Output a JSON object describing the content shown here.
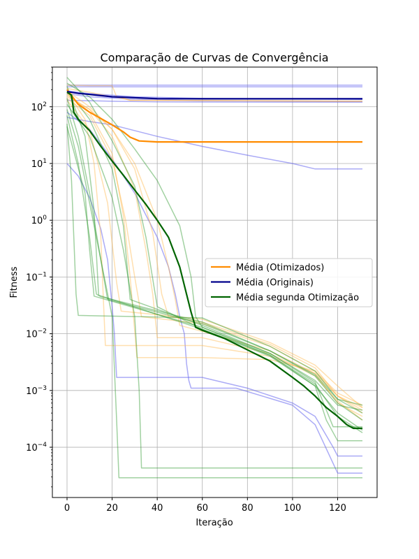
{
  "chart_data": {
    "type": "line",
    "title": "Comparação de Curvas de Convergência",
    "xlabel": "Iteração",
    "ylabel": "Fitness",
    "yscale": "log",
    "xlim": [
      -6.5,
      137.5
    ],
    "ylim": [
      1.3e-05,
      500
    ],
    "xticks": [
      0,
      20,
      40,
      60,
      80,
      100,
      120
    ],
    "yticks": [
      {
        "value": 0.0001,
        "base": "10",
        "exp": "−4"
      },
      {
        "value": 0.001,
        "base": "10",
        "exp": "−3"
      },
      {
        "value": 0.01,
        "base": "10",
        "exp": "−2"
      },
      {
        "value": 0.1,
        "base": "10",
        "exp": "−1"
      },
      {
        "value": 1,
        "base": "10",
        "exp": "0"
      },
      {
        "value": 10,
        "base": "10",
        "exp": "1"
      },
      {
        "value": 100,
        "base": "10",
        "exp": "2"
      }
    ],
    "grid": true,
    "legend_position": "center-right",
    "colors": {
      "otimizados": "#ff8c00",
      "originais": "#00008b",
      "originais_runs": "#6666ee",
      "segunda": "#006400",
      "segunda_runs": "#2e9a2e",
      "otimizados_runs": "#ffb84d"
    },
    "series": [
      {
        "name": "Média (Otimizados)",
        "color": "#ff8c00",
        "width": 2.2,
        "x": [
          0,
          5,
          10,
          15,
          20,
          25,
          28,
          32,
          40,
          60,
          90,
          131
        ],
        "y": [
          200,
          110,
          80,
          62,
          48,
          36,
          29,
          25,
          24,
          24,
          24,
          24
        ]
      },
      {
        "name": "Média (Originais)",
        "color": "#00008b",
        "width": 2.2,
        "x": [
          0,
          5,
          10,
          20,
          40,
          60,
          90,
          131
        ],
        "y": [
          185,
          172,
          165,
          150,
          139,
          138,
          138,
          138
        ]
      },
      {
        "name": "Média segunda Otimização",
        "color": "#006400",
        "width": 2.2,
        "x": [
          0,
          2,
          3,
          5,
          10,
          15,
          20,
          25,
          30,
          35,
          40,
          45,
          50,
          53,
          55,
          57,
          60,
          70,
          80,
          90,
          100,
          105,
          110,
          113,
          115,
          120,
          124,
          127,
          131
        ],
        "y": [
          180,
          160,
          80,
          60,
          38,
          20,
          11,
          6.2,
          3.4,
          1.9,
          1.0,
          0.5,
          0.15,
          0.05,
          0.024,
          0.013,
          0.0115,
          0.0082,
          0.0052,
          0.0033,
          0.0017,
          0.0012,
          0.0008,
          0.0006,
          0.0005,
          0.00035,
          0.00025,
          0.000215,
          0.000215
        ]
      }
    ],
    "background_runs": [
      {
        "group": "originais",
        "x": [
          0,
          131
        ],
        "y": [
          240,
          240
        ]
      },
      {
        "group": "originais",
        "x": [
          0,
          131
        ],
        "y": [
          225,
          225
        ]
      },
      {
        "group": "originais",
        "x": [
          0,
          10,
          30,
          60,
          131
        ],
        "y": [
          190,
          170,
          150,
          140,
          135
        ]
      },
      {
        "group": "originais",
        "x": [
          0,
          10,
          30,
          60,
          131
        ],
        "y": [
          170,
          150,
          135,
          127,
          125
        ]
      },
      {
        "group": "originais",
        "x": [
          0,
          20,
          40,
          60,
          131
        ],
        "y": [
          130,
          125,
          122,
          121,
          120
        ]
      },
      {
        "group": "originais",
        "x": [
          0,
          10,
          20,
          40,
          60,
          80,
          100,
          110,
          131
        ],
        "y": [
          65,
          55,
          48,
          30,
          20,
          14,
          10,
          8,
          8
        ]
      },
      {
        "group": "originais",
        "x": [
          0,
          5,
          10,
          15,
          18,
          20,
          21,
          22,
          60,
          80,
          100,
          110,
          118,
          120,
          131
        ],
        "y": [
          10,
          6,
          2.5,
          0.7,
          0.2,
          0.03,
          0.01,
          0.0017,
          0.0017,
          0.0011,
          0.0006,
          0.00035,
          0.0001,
          7e-05,
          7e-05
        ]
      },
      {
        "group": "originais",
        "x": [
          0,
          10,
          20,
          30,
          40,
          45,
          48,
          50,
          52,
          53,
          54,
          55,
          75,
          100,
          110,
          120,
          131
        ],
        "y": [
          80,
          40,
          12,
          3,
          0.5,
          0.15,
          0.05,
          0.02,
          0.01,
          0.003,
          0.0015,
          0.0011,
          0.0011,
          0.00055,
          0.00025,
          3.5e-05,
          3.5e-05
        ]
      },
      {
        "group": "otimizados",
        "x": [
          0,
          10,
          20,
          22,
          28,
          131
        ],
        "y": [
          240,
          235,
          235,
          150,
          130,
          125
        ]
      },
      {
        "group": "otimizados",
        "x": [
          0,
          10,
          20,
          25,
          28,
          131
        ],
        "y": [
          210,
          180,
          150,
          140,
          130,
          125
        ]
      },
      {
        "group": "otimizados",
        "x": [
          0,
          8,
          12,
          15,
          16,
          17,
          60,
          90,
          110,
          120,
          131
        ],
        "y": [
          180,
          60,
          10,
          0.5,
          0.05,
          0.0062,
          0.0062,
          0.004,
          0.002,
          0.0008,
          0.0005
        ]
      },
      {
        "group": "otimizados",
        "x": [
          0,
          10,
          20,
          25,
          28,
          31,
          60,
          90,
          110,
          120,
          131
        ],
        "y": [
          170,
          80,
          15,
          1.2,
          0.1,
          0.0038,
          0.0038,
          0.0035,
          0.0022,
          0.0008,
          0.0004
        ]
      },
      {
        "group": "otimizados",
        "x": [
          0,
          10,
          20,
          30,
          35,
          38,
          40,
          60,
          90,
          110,
          120,
          131
        ],
        "y": [
          160,
          90,
          30,
          3.5,
          0.3,
          0.05,
          0.0085,
          0.0085,
          0.0045,
          0.0018,
          0.00065,
          0.0003
        ]
      },
      {
        "group": "otimizados",
        "x": [
          0,
          10,
          20,
          30,
          40,
          45,
          48,
          50,
          60,
          90,
          110,
          120,
          131
        ],
        "y": [
          150,
          90,
          40,
          10,
          1.0,
          0.15,
          0.04,
          0.014,
          0.011,
          0.005,
          0.002,
          0.0006,
          0.00035
        ]
      },
      {
        "group": "otimizados",
        "x": [
          0,
          10,
          20,
          26,
          30,
          33,
          60,
          90,
          110,
          120,
          131
        ],
        "y": [
          140,
          70,
          12,
          1.0,
          0.1,
          0.02,
          0.015,
          0.006,
          0.0022,
          0.0009,
          0.00055
        ]
      },
      {
        "group": "otimizados",
        "x": [
          0,
          10,
          20,
          30,
          38,
          42,
          45,
          60,
          90,
          110,
          120,
          131
        ],
        "y": [
          190,
          100,
          40,
          8,
          0.6,
          0.05,
          0.02,
          0.016,
          0.0065,
          0.0025,
          0.0008,
          0.00045
        ]
      },
      {
        "group": "otimizados",
        "x": [
          0,
          10,
          18,
          22,
          24,
          60,
          90,
          110,
          120,
          131
        ],
        "y": [
          130,
          40,
          2,
          0.08,
          0.025,
          0.018,
          0.007,
          0.0028,
          0.0012,
          0.0005
        ]
      },
      {
        "group": "segunda",
        "x": [
          0,
          2,
          3,
          4,
          5,
          60,
          90,
          110,
          120,
          131
        ],
        "y": [
          50,
          5,
          0.5,
          0.05,
          0.021,
          0.019,
          0.006,
          0.0022,
          0.0007,
          0.0004
        ]
      },
      {
        "group": "segunda",
        "x": [
          0,
          5,
          10,
          13,
          15,
          60,
          90,
          110,
          120,
          131
        ],
        "y": [
          70,
          10,
          0.5,
          0.05,
          0.045,
          0.016,
          0.005,
          0.0018,
          0.0006,
          0.0003
        ]
      },
      {
        "group": "segunda",
        "x": [
          0,
          5,
          10,
          15,
          20,
          22,
          23,
          131
        ],
        "y": [
          90,
          20,
          2,
          0.2,
          0.02,
          0.0003,
          2.9e-05,
          2.9e-05
        ]
      },
      {
        "group": "segunda",
        "x": [
          0,
          10,
          20,
          25,
          30,
          32,
          33,
          131
        ],
        "y": [
          110,
          30,
          2.5,
          0.3,
          0.02,
          0.001,
          4.3e-05,
          4.3e-05
        ]
      },
      {
        "group": "segunda",
        "x": [
          0,
          5,
          10,
          15,
          18,
          60,
          90,
          110,
          120,
          131
        ],
        "y": [
          140,
          30,
          3,
          0.2,
          0.04,
          0.015,
          0.005,
          0.0019,
          0.0007,
          0.00055
        ]
      },
      {
        "group": "segunda",
        "x": [
          0,
          10,
          20,
          30,
          40,
          50,
          55,
          57,
          60,
          90,
          110,
          120,
          131
        ],
        "y": [
          260,
          150,
          60,
          18,
          5,
          0.8,
          0.1,
          0.02,
          0.013,
          0.0045,
          0.0015,
          0.00055,
          0.00045
        ]
      },
      {
        "group": "segunda",
        "x": [
          0,
          8,
          12,
          14,
          60,
          90,
          110,
          115,
          120,
          131
        ],
        "y": [
          230,
          30,
          1.5,
          0.048,
          0.012,
          0.004,
          0.0012,
          0.0003,
          0.00013,
          0.00013
        ]
      },
      {
        "group": "segunda",
        "x": [
          0,
          10,
          20,
          25,
          28,
          60,
          90,
          110,
          118,
          131
        ],
        "y": [
          200,
          60,
          8,
          0.8,
          0.04,
          0.014,
          0.0045,
          0.0014,
          0.00023,
          0.00023
        ]
      },
      {
        "group": "segunda",
        "x": [
          0,
          10,
          20,
          30,
          35,
          40,
          60,
          90,
          110,
          120,
          131
        ],
        "y": [
          330,
          120,
          25,
          4,
          0.5,
          0.03,
          0.012,
          0.0042,
          0.0013,
          0.00035,
          0.00018
        ]
      },
      {
        "group": "segunda",
        "x": [
          0,
          8,
          10,
          12,
          60,
          90,
          110,
          120,
          131
        ],
        "y": [
          45,
          3,
          0.3,
          0.046,
          0.013,
          0.0042,
          0.0012,
          0.0004,
          0.0002
        ]
      }
    ]
  }
}
